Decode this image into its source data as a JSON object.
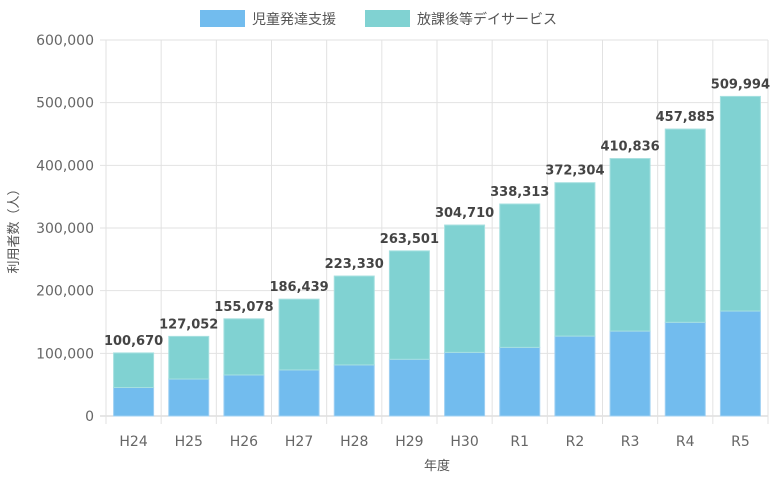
{
  "chart_data": {
    "type": "bar",
    "stacked": true,
    "title": "",
    "xlabel": "年度",
    "ylabel": "利用者数（人）",
    "ylim": [
      0,
      600000
    ],
    "yticks": [
      0,
      100000,
      200000,
      300000,
      400000,
      500000,
      600000
    ],
    "ytick_labels": [
      "0",
      "100,000",
      "200,000",
      "300,000",
      "400,000",
      "500,000",
      "600,000"
    ],
    "grid": true,
    "legend_position": "top-center",
    "categories": [
      "H24",
      "H25",
      "H26",
      "H27",
      "H28",
      "H29",
      "H30",
      "R1",
      "R2",
      "R3",
      "R4",
      "R5"
    ],
    "series": [
      {
        "name": "児童発達支援",
        "color": "#72bcee",
        "values": [
          45500,
          59000,
          65500,
          73500,
          81500,
          90500,
          101500,
          109500,
          127500,
          135500,
          149500,
          167500
        ]
      },
      {
        "name": "放課後等デイサービス",
        "color": "#80d2d2",
        "values": [
          55170,
          68052,
          89578,
          112939,
          141830,
          173001,
          203210,
          228813,
          244804,
          275336,
          308385,
          342494
        ]
      }
    ],
    "totals": [
      100670,
      127052,
      155078,
      186439,
      223330,
      263501,
      304710,
      338313,
      372304,
      410836,
      457885,
      509994
    ],
    "total_labels": [
      "100,670",
      "127,052",
      "155,078",
      "186,439",
      "223,330",
      "263,501",
      "304,710",
      "338,313",
      "372,304",
      "410,836",
      "457,885",
      "509,994"
    ]
  }
}
